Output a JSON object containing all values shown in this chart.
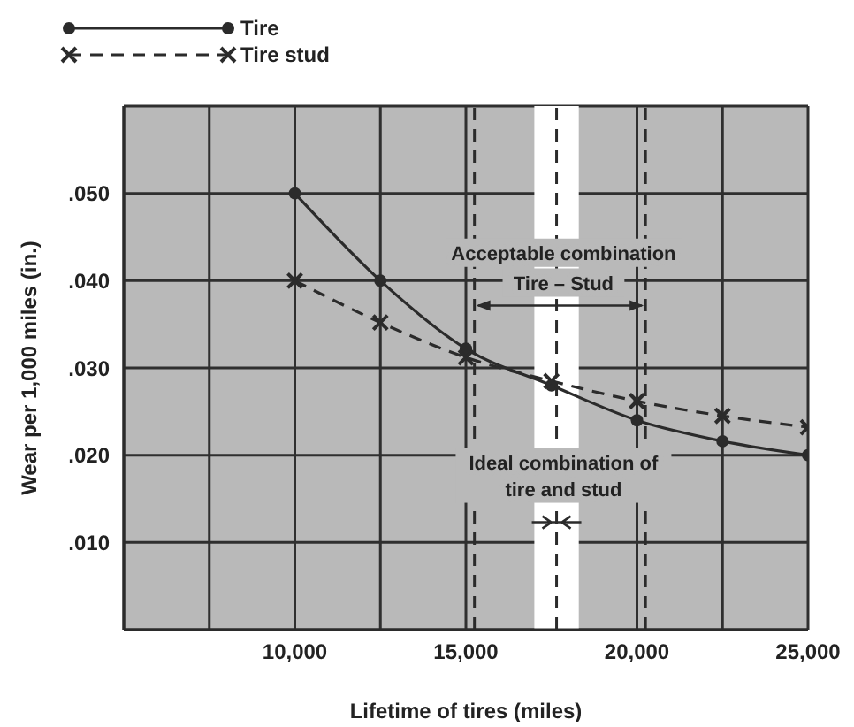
{
  "chart_data": {
    "type": "line",
    "xlabel": "Lifetime of tires (miles)",
    "ylabel": "Wear per 1,000 miles (in.)",
    "x": [
      10000,
      12500,
      15000,
      17500,
      20000,
      22500,
      25000
    ],
    "series": [
      {
        "name": "Tire",
        "color": "#2b2b2b",
        "marker": "circle",
        "line_style": "solid",
        "values": [
          0.05,
          0.04,
          0.0322,
          0.028,
          0.024,
          0.0216,
          0.02
        ]
      },
      {
        "name": "Tire stud",
        "color": "#2b2b2b",
        "marker": "cross",
        "line_style": "dashed",
        "values": [
          0.04,
          0.0352,
          0.0312,
          0.0285,
          0.0262,
          0.0245,
          0.0232
        ]
      }
    ],
    "xlim": [
      5000,
      25000
    ],
    "xticks": [
      {
        "value": 5000,
        "label": null
      },
      {
        "value": 7500,
        "label": null
      },
      {
        "value": 10000,
        "label": "10,000"
      },
      {
        "value": 12500,
        "label": null
      },
      {
        "value": 15000,
        "label": "15,000"
      },
      {
        "value": 20000,
        "label": "20,000"
      },
      {
        "value": 22500,
        "label": null
      },
      {
        "value": 25000,
        "label": "25,000"
      }
    ],
    "ylim": [
      0,
      0.06
    ],
    "yticks": [
      {
        "value": 0,
        "label": null
      },
      {
        "value": 0.01,
        "label": ".010"
      },
      {
        "value": 0.02,
        "label": ".020"
      },
      {
        "value": 0.03,
        "label": ".030"
      },
      {
        "value": 0.04,
        "label": ".040"
      },
      {
        "value": 0.05,
        "label": ".050"
      },
      {
        "value": 0.06,
        "label": null
      }
    ],
    "bands": [
      {
        "axis": "x",
        "from": 17000,
        "to": 18300,
        "label": null,
        "color": "#ffffff"
      }
    ],
    "ref_lines": [
      {
        "axis": "x",
        "value": 15250,
        "label": null,
        "color": "#2b2b2b",
        "line_style": "dashed"
      },
      {
        "axis": "x",
        "value": 20250,
        "label": null,
        "color": "#2b2b2b",
        "line_style": "dashed"
      },
      {
        "axis": "x",
        "value": 17650,
        "label": null,
        "color": "#2b2b2b",
        "line_style": "dashed"
      }
    ],
    "annotations": [
      "Acceptable combination",
      "Tire – Stud",
      "Ideal combination of tire and stud"
    ],
    "grid": true,
    "legend": "top left"
  }
}
